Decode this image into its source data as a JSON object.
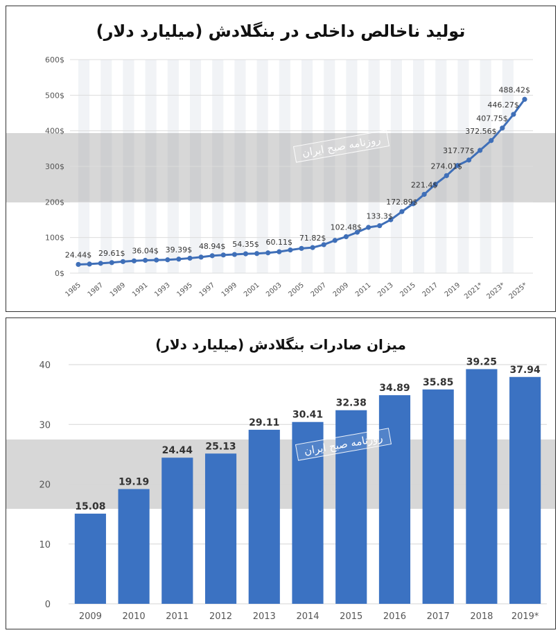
{
  "watermark": {
    "text": "روزنامه صبح ایران"
  },
  "chart_data": [
    {
      "type": "line",
      "title": "تولید ناخالص داخلی در بنگلادش (میلیارد دلار)",
      "xlabel": "",
      "ylabel": "",
      "ylim": [
        0,
        600
      ],
      "y_ticks": [
        "0$",
        "100$",
        "200$",
        "300$",
        "400$",
        "500$",
        "600$"
      ],
      "x_ticks": [
        "1985",
        "1987",
        "1989",
        "1991",
        "1993",
        "1995",
        "1997",
        "1999",
        "2001",
        "2003",
        "2005",
        "2007",
        "2009",
        "2011",
        "2013",
        "2015",
        "2017",
        "2019",
        "2021*",
        "2023*",
        "2025*"
      ],
      "x": [
        1985,
        1986,
        1987,
        1988,
        1989,
        1990,
        1991,
        1992,
        1993,
        1994,
        1995,
        1996,
        1997,
        1998,
        1999,
        2000,
        2001,
        2002,
        2003,
        2004,
        2005,
        2006,
        2007,
        2008,
        2009,
        2010,
        2011,
        2012,
        2013,
        2014,
        2015,
        2016,
        2017,
        2018,
        2019,
        2020,
        2021,
        2022,
        2023,
        2024,
        2025
      ],
      "values": [
        24.44,
        25.5,
        27.5,
        29.61,
        32.5,
        34.5,
        36.04,
        36.8,
        37.5,
        39.39,
        42,
        45,
        48.94,
        51,
        52.5,
        54.35,
        55,
        57,
        60.11,
        65,
        69.5,
        71.82,
        80,
        92,
        102.48,
        115,
        128.6,
        133.3,
        150,
        172.89,
        195,
        221.4,
        249.7,
        274.01,
        302.6,
        317.77,
        345,
        372.56,
        407.75,
        446.27,
        488.42
      ],
      "data_labels": [
        {
          "x": 1985,
          "text": "24.44$"
        },
        {
          "x": 1988,
          "text": "29.61$"
        },
        {
          "x": 1991,
          "text": "36.04$"
        },
        {
          "x": 1994,
          "text": "39.39$"
        },
        {
          "x": 1997,
          "text": "48.94$"
        },
        {
          "x": 2000,
          "text": "54.35$"
        },
        {
          "x": 2003,
          "text": "60.11$"
        },
        {
          "x": 2006,
          "text": "71.82$"
        },
        {
          "x": 2009,
          "text": "102.48$"
        },
        {
          "x": 2012,
          "text": "133.3$"
        },
        {
          "x": 2014,
          "text": "172.89$"
        },
        {
          "x": 2016,
          "text": "221.4$"
        },
        {
          "x": 2018,
          "text": "274.01$"
        },
        {
          "x": 2020,
          "text": "317.77$"
        },
        {
          "x": 2022,
          "text": "372.56$"
        },
        {
          "x": 2023,
          "text": "407.75$"
        },
        {
          "x": 2024,
          "text": "446.27$"
        },
        {
          "x": 2025,
          "text": "488.42$"
        }
      ],
      "colors": {
        "line": "#3f6fb8",
        "point": "#3f6fb8"
      },
      "grid": true
    },
    {
      "type": "bar",
      "title": "میزان صادرات بنگلادش (میلیارد دلار)",
      "xlabel": "",
      "ylabel": "",
      "ylim": [
        0,
        40
      ],
      "y_ticks": [
        "0",
        "10",
        "20",
        "30",
        "40"
      ],
      "categories": [
        "2009",
        "2010",
        "2011",
        "2012",
        "2013",
        "2014",
        "2015",
        "2016",
        "2017",
        "2018",
        "2019*"
      ],
      "values": [
        15.08,
        19.19,
        24.44,
        25.13,
        29.11,
        30.41,
        32.38,
        34.89,
        35.85,
        39.25,
        37.94
      ],
      "value_labels": [
        "15.08",
        "19.19",
        "24.44",
        "25.13",
        "29.11",
        "30.41",
        "32.38",
        "34.89",
        "35.85",
        "39.25",
        "37.94"
      ],
      "colors": {
        "bar": "#3b72c2"
      },
      "grid": true
    }
  ]
}
